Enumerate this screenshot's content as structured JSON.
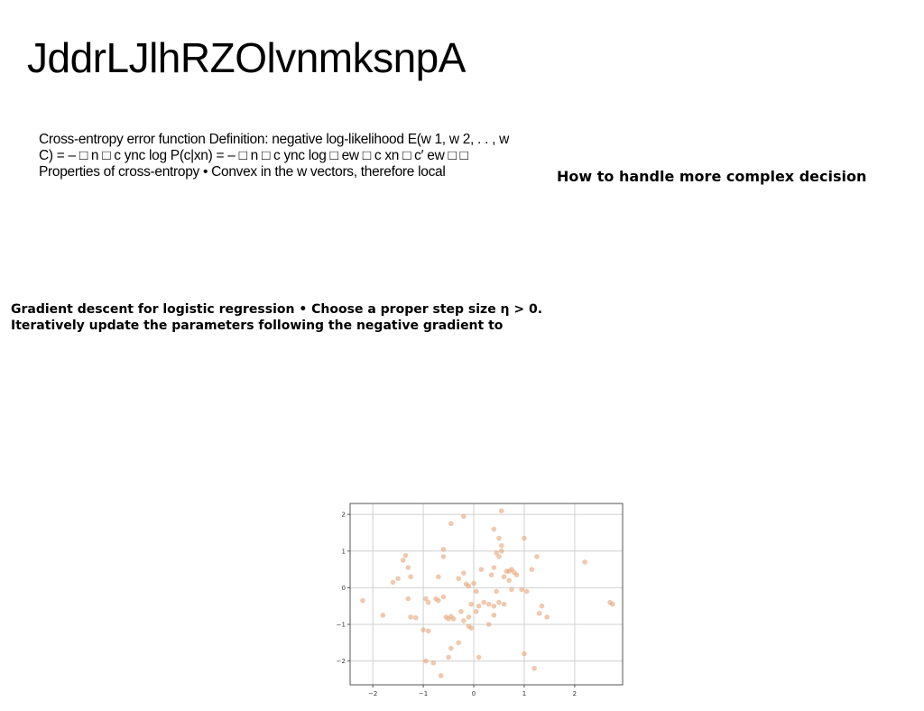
{
  "slide": {
    "title": "JddrLJlhRZOlvnmksnpA",
    "paragraph1": "Cross-entropy error function Definition: negative log-likelihood E(w 1, w 2, . . , w C) = – □ n □ c ync log P(c|xn) = – □ n □ c ync log □ ew □ c xn □ c′ ew □ □ Properties of cross-entropy • Convex in the w vectors, therefore local",
    "side_heading": "How to handle more complex decision",
    "paragraph2": "Gradient descent for logistic regression • Choose a proper step size η > 0. Iteratively update the parameters following the negative gradient to"
  },
  "chart_data": {
    "type": "scatter",
    "title": "",
    "xlabel": "",
    "ylabel": "",
    "xlim": [
      -2.45,
      2.95
    ],
    "ylim": [
      -2.65,
      2.3
    ],
    "xticks": [
      -2,
      -1,
      0,
      1,
      2
    ],
    "xtick_labels": [
      "−2",
      "−1",
      "0",
      "1",
      "2"
    ],
    "yticks": [
      -2,
      -1,
      0,
      1,
      2
    ],
    "ytick_labels": [
      "−2",
      "−1",
      "0",
      "1",
      "2"
    ],
    "grid": true,
    "point_color": "#e6a57a",
    "points": [
      [
        -2.2,
        -0.35
      ],
      [
        -1.8,
        -0.75
      ],
      [
        -1.6,
        0.15
      ],
      [
        -1.5,
        0.25
      ],
      [
        -1.4,
        0.75
      ],
      [
        -1.35,
        0.88
      ],
      [
        -1.3,
        0.55
      ],
      [
        -1.25,
        0.3
      ],
      [
        -1.3,
        -0.3
      ],
      [
        -1.25,
        -0.8
      ],
      [
        -1.15,
        -0.82
      ],
      [
        -1.0,
        -1.15
      ],
      [
        -0.9,
        -1.18
      ],
      [
        -0.95,
        -0.3
      ],
      [
        -0.9,
        -0.4
      ],
      [
        -0.75,
        -0.3
      ],
      [
        -0.7,
        -0.35
      ],
      [
        -0.6,
        -0.25
      ],
      [
        -0.55,
        -0.8
      ],
      [
        -0.5,
        -0.85
      ],
      [
        -0.45,
        -0.78
      ],
      [
        -0.4,
        -0.85
      ],
      [
        -0.7,
        0.3
      ],
      [
        -0.6,
        0.85
      ],
      [
        -0.6,
        1.05
      ],
      [
        -0.45,
        1.75
      ],
      [
        -0.2,
        1.95
      ],
      [
        -0.3,
        0.25
      ],
      [
        -0.2,
        0.4
      ],
      [
        -0.15,
        0.1
      ],
      [
        -0.1,
        0.05
      ],
      [
        0.0,
        0.12
      ],
      [
        0.05,
        -0.1
      ],
      [
        0.1,
        -0.5
      ],
      [
        0.05,
        -0.65
      ],
      [
        -0.05,
        -0.45
      ],
      [
        -0.25,
        -0.65
      ],
      [
        -0.2,
        -0.9
      ],
      [
        -0.1,
        -0.8
      ],
      [
        -0.1,
        -1.05
      ],
      [
        -0.05,
        -1.1
      ],
      [
        -0.3,
        -1.5
      ],
      [
        -0.45,
        -1.65
      ],
      [
        -0.5,
        -1.9
      ],
      [
        -0.8,
        -2.05
      ],
      [
        -0.95,
        -2.0
      ],
      [
        -0.65,
        -2.4
      ],
      [
        0.1,
        -1.9
      ],
      [
        0.15,
        0.5
      ],
      [
        0.2,
        -0.4
      ],
      [
        0.3,
        -0.45
      ],
      [
        0.3,
        -1.0
      ],
      [
        0.4,
        -0.75
      ],
      [
        0.4,
        -0.5
      ],
      [
        0.45,
        -0.1
      ],
      [
        0.5,
        -0.4
      ],
      [
        0.6,
        -0.45
      ],
      [
        0.35,
        0.35
      ],
      [
        0.4,
        0.55
      ],
      [
        0.45,
        0.95
      ],
      [
        0.5,
        0.85
      ],
      [
        0.55,
        1.0
      ],
      [
        0.55,
        1.15
      ],
      [
        0.5,
        1.35
      ],
      [
        0.4,
        1.6
      ],
      [
        0.55,
        2.1
      ],
      [
        0.6,
        0.3
      ],
      [
        0.65,
        0.45
      ],
      [
        0.7,
        0.45
      ],
      [
        0.75,
        0.5
      ],
      [
        0.8,
        0.42
      ],
      [
        0.85,
        0.35
      ],
      [
        0.7,
        0.2
      ],
      [
        0.75,
        -0.05
      ],
      [
        0.95,
        -0.05
      ],
      [
        1.05,
        -0.1
      ],
      [
        1.0,
        1.35
      ],
      [
        1.15,
        0.5
      ],
      [
        1.25,
        0.85
      ],
      [
        1.3,
        -0.7
      ],
      [
        1.35,
        -0.5
      ],
      [
        1.45,
        -0.8
      ],
      [
        1.0,
        -1.8
      ],
      [
        1.2,
        -2.2
      ],
      [
        2.2,
        0.7
      ],
      [
        2.7,
        -0.4
      ],
      [
        2.75,
        -0.45
      ]
    ]
  }
}
